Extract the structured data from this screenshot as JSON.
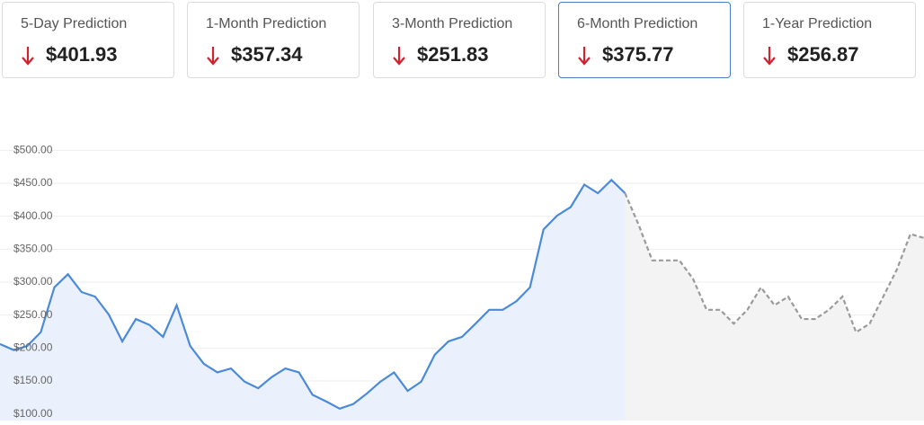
{
  "cards": [
    {
      "label": "5-Day Prediction",
      "value": "$401.93",
      "selected": false
    },
    {
      "label": "1-Month Prediction",
      "value": "$357.34",
      "selected": false
    },
    {
      "label": "3-Month Prediction",
      "value": "$251.83",
      "selected": false
    },
    {
      "label": "6-Month Prediction",
      "value": "$375.77",
      "selected": true
    },
    {
      "label": "1-Year Prediction",
      "value": "$256.87",
      "selected": false
    }
  ],
  "chart_data": {
    "type": "line",
    "ylim": [
      90,
      510
    ],
    "yticks": [
      {
        "value": 100,
        "label": "$100.00"
      },
      {
        "value": 150,
        "label": "$150.00"
      },
      {
        "value": 200,
        "label": "$200.00"
      },
      {
        "value": 250,
        "label": "$250.00"
      },
      {
        "value": 300,
        "label": "$300.00"
      },
      {
        "value": 350,
        "label": "$350.00"
      },
      {
        "value": 400,
        "label": "$400.00"
      },
      {
        "value": 450,
        "label": "$450.00"
      },
      {
        "value": 500,
        "label": "$500.00"
      }
    ],
    "grid": true,
    "series": [
      {
        "color": "#4a8ad9",
        "fill": "#eaf1fc",
        "dashed": false,
        "values": [
          206,
          197,
          203,
          224,
          292,
          312,
          285,
          278,
          251,
          210,
          244,
          235,
          217,
          265,
          203,
          176,
          163,
          169,
          149,
          139,
          156,
          169,
          163,
          129,
          119,
          108,
          115,
          131,
          149,
          163,
          135,
          149,
          190,
          210,
          217,
          237,
          258,
          258,
          271,
          292,
          380,
          401,
          414,
          448,
          435,
          455,
          435,
          null,
          null,
          null,
          null,
          null,
          null,
          null,
          null,
          null,
          null,
          null,
          null,
          null,
          null,
          null,
          null,
          null,
          null,
          null,
          null,
          null,
          null
        ]
      },
      {
        "color": "#9a9a9a",
        "fill": "#f3f3f3",
        "dashed": true,
        "values": [
          null,
          null,
          null,
          null,
          null,
          null,
          null,
          null,
          null,
          null,
          null,
          null,
          null,
          null,
          null,
          null,
          null,
          null,
          null,
          null,
          null,
          null,
          null,
          null,
          null,
          null,
          null,
          null,
          null,
          null,
          null,
          null,
          null,
          null,
          null,
          null,
          null,
          null,
          null,
          null,
          null,
          null,
          null,
          null,
          null,
          null,
          435,
          387,
          333,
          333,
          333,
          305,
          258,
          258,
          237,
          258,
          292,
          265,
          278,
          244,
          244,
          258,
          278,
          224,
          237,
          278,
          319,
          373,
          367
        ]
      }
    ]
  }
}
